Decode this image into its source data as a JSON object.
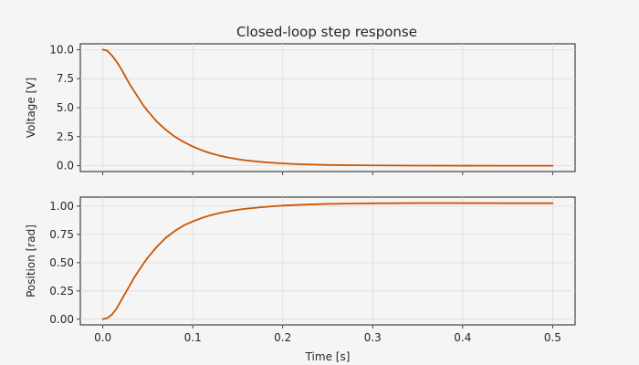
{
  "chart_data": {
    "type": "line",
    "title": "Closed-loop step response",
    "colors": {
      "series": "#cc5500",
      "background": "#f5f5f5"
    },
    "grid": true,
    "xlabel": "Time [s]",
    "xlim": [
      -0.025,
      0.525
    ],
    "xticks": [
      0.0,
      0.1,
      0.2,
      0.3,
      0.4,
      0.5
    ],
    "xtick_labels": [
      "0.0",
      "0.1",
      "0.2",
      "0.3",
      "0.4",
      "0.5"
    ],
    "x": [
      0.0,
      0.005,
      0.01,
      0.015,
      0.02,
      0.025,
      0.03,
      0.035,
      0.04,
      0.045,
      0.05,
      0.06,
      0.07,
      0.08,
      0.09,
      0.1,
      0.11,
      0.12,
      0.13,
      0.14,
      0.15,
      0.16,
      0.18,
      0.2,
      0.22,
      0.25,
      0.3,
      0.35,
      0.4,
      0.45,
      0.5
    ],
    "panels": [
      {
        "ylabel": "Voltage [V]",
        "ylim": [
          -0.5,
          10.5
        ],
        "yticks": [
          0.0,
          2.5,
          5.0,
          7.5,
          10.0
        ],
        "ytick_labels": [
          "0.0",
          "2.5",
          "5.0",
          "7.5",
          "10.0"
        ],
        "series": [
          {
            "values": [
              10.0,
              9.9,
              9.5,
              9.0,
              8.4,
              7.7,
              7.0,
              6.4,
              5.8,
              5.2,
              4.7,
              3.8,
              3.1,
              2.5,
              2.05,
              1.65,
              1.33,
              1.07,
              0.86,
              0.7,
              0.56,
              0.45,
              0.3,
              0.2,
              0.13,
              0.07,
              0.03,
              0.012,
              0.005,
              0.002,
              0.0
            ]
          }
        ]
      },
      {
        "ylabel": "Position [rad]",
        "ylim": [
          -0.05,
          1.08
        ],
        "yticks": [
          0.0,
          0.25,
          0.5,
          0.75,
          1.0
        ],
        "ytick_labels": [
          "0.00",
          "0.25",
          "0.50",
          "0.75",
          "1.00"
        ],
        "series": [
          {
            "values": [
              0.0,
              0.01,
              0.04,
              0.09,
              0.16,
              0.23,
              0.3,
              0.37,
              0.43,
              0.49,
              0.545,
              0.64,
              0.72,
              0.78,
              0.83,
              0.865,
              0.895,
              0.92,
              0.94,
              0.955,
              0.968,
              0.978,
              0.993,
              1.005,
              1.012,
              1.02,
              1.025,
              1.027,
              1.027,
              1.026,
              1.026
            ]
          }
        ]
      }
    ]
  }
}
